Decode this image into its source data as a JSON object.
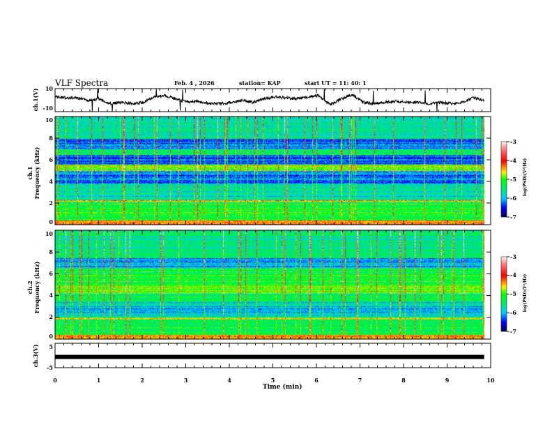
{
  "header": {
    "title": "VLF Spectra",
    "date": "Feb. 4  , 2026",
    "station": "station= KAP",
    "start_ut": "start  UT  =   11: 40: 1"
  },
  "colors": {
    "axis": "#000000",
    "trace": "#000000"
  },
  "chart_data": [
    {
      "type": "line",
      "name": "ch1-waveform",
      "ylabel": "ch.1(V)",
      "ylim": [
        -10,
        10
      ],
      "yticks": [
        "10",
        "-10"
      ],
      "xlim": [
        0,
        9.85
      ],
      "x_step_min": 0.25,
      "values": [
        3,
        2,
        2,
        0,
        1,
        -3,
        -2,
        -3,
        -2,
        3,
        4,
        1,
        -2,
        -1,
        -3,
        -3,
        -2,
        0,
        -2,
        1,
        3,
        2,
        1,
        3,
        4,
        -4,
        1,
        5,
        -2,
        -3,
        -2,
        -1,
        -2,
        -2,
        -3,
        -2,
        -3,
        -2,
        2,
        0
      ]
    },
    {
      "type": "heatmap",
      "name": "ch1-spectrogram",
      "ylabel": "ch.1\nFrequency (kHz)",
      "ylim": [
        0,
        10
      ],
      "yticks": [
        "0",
        "2",
        "4",
        "6",
        "8",
        "10"
      ],
      "colorbar": {
        "label": "log(PSD)(V²/Hz)",
        "range": [
          -7,
          -3
        ],
        "ticks": [
          "-3",
          "-4",
          "-5",
          "-6",
          "-7"
        ]
      }
    },
    {
      "type": "heatmap",
      "name": "ch2-spectrogram",
      "ylabel": "ch.2\nFrequency (kHz)",
      "ylim": [
        0,
        10
      ],
      "yticks": [
        "0",
        "2",
        "4",
        "6",
        "8",
        "10"
      ],
      "colorbar": {
        "label": "log(PSD)(V²/Hz)",
        "range": [
          -7,
          -3
        ],
        "ticks": [
          "-3",
          "-4",
          "-5",
          "-6",
          "-7"
        ]
      }
    },
    {
      "type": "line",
      "name": "ch3-waveform",
      "ylabel": "ch.3(V)",
      "ylim": [
        -5,
        5
      ],
      "yticks": [
        "5",
        "-5"
      ],
      "values_constant": -0.6
    }
  ],
  "xaxis": {
    "label": "Time  (min)",
    "ticks": [
      "0",
      "1",
      "2",
      "3",
      "4",
      "5",
      "6",
      "7",
      "8",
      "9",
      "10"
    ],
    "range": [
      0,
      10
    ]
  }
}
